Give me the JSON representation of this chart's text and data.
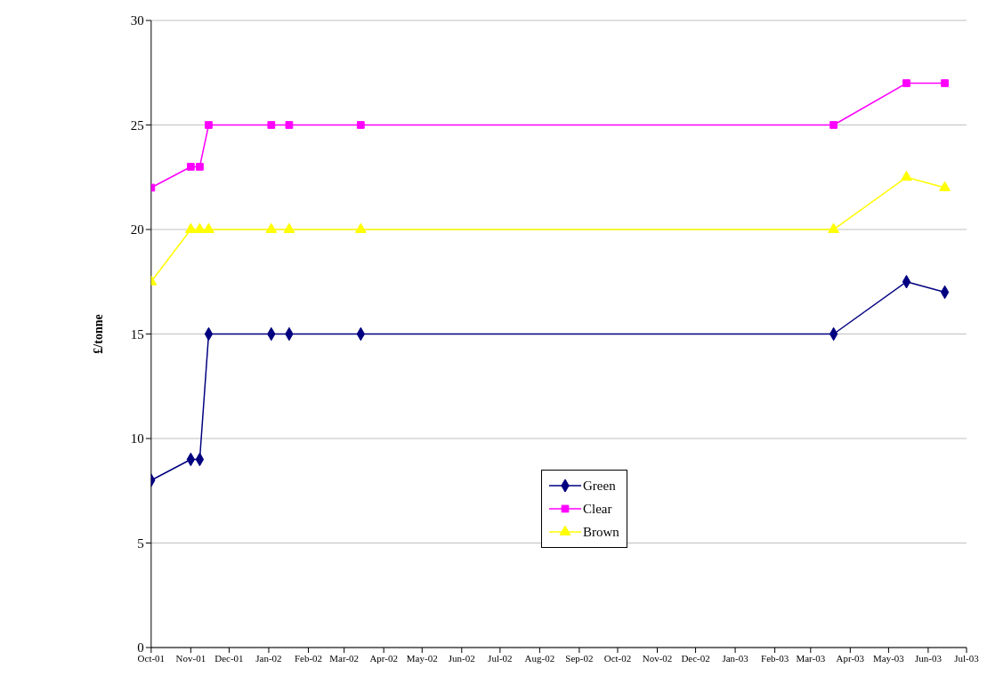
{
  "chart_data": {
    "type": "line",
    "ylabel": "£/tonne",
    "x": [
      "2001-10-01",
      "2001-11-01",
      "2001-11-08",
      "2001-11-15",
      "2002-01-03",
      "2002-01-17",
      "2002-03-14",
      "2003-03-19",
      "2003-05-15",
      "2003-06-14"
    ],
    "series": [
      {
        "name": "Green",
        "color": "#000080",
        "marker": "diamond",
        "values": [
          8,
          9,
          9,
          15,
          15,
          15,
          15,
          15,
          17.5,
          17
        ]
      },
      {
        "name": "Clear",
        "color": "#ff00ff",
        "marker": "square",
        "values": [
          22,
          23,
          23,
          25,
          25,
          25,
          25,
          25,
          27,
          27
        ]
      },
      {
        "name": "Brown",
        "color": "#ffff00",
        "marker": "triangle",
        "values": [
          17.5,
          20,
          20,
          20,
          20,
          20,
          20,
          20,
          22.5,
          22
        ]
      }
    ],
    "xlim": [
      "2001-10-01",
      "2003-07-01"
    ],
    "xticks": [
      {
        "value": "2001-10-01",
        "label": "Oct-01"
      },
      {
        "value": "2001-11-01",
        "label": "Nov-01"
      },
      {
        "value": "2001-12-01",
        "label": "Dec-01"
      },
      {
        "value": "2002-01-01",
        "label": "Jan-02"
      },
      {
        "value": "2002-02-01",
        "label": "Feb-02"
      },
      {
        "value": "2002-03-01",
        "label": "Mar-02"
      },
      {
        "value": "2002-04-01",
        "label": "Apr-02"
      },
      {
        "value": "2002-05-01",
        "label": "May-02"
      },
      {
        "value": "2002-06-01",
        "label": "Jun-02"
      },
      {
        "value": "2002-07-01",
        "label": "Jul-02"
      },
      {
        "value": "2002-08-01",
        "label": "Aug-02"
      },
      {
        "value": "2002-09-01",
        "label": "Sep-02"
      },
      {
        "value": "2002-10-01",
        "label": "Oct-02"
      },
      {
        "value": "2002-11-01",
        "label": "Nov-02"
      },
      {
        "value": "2002-12-01",
        "label": "Dec-02"
      },
      {
        "value": "2003-01-01",
        "label": "Jan-03"
      },
      {
        "value": "2003-02-01",
        "label": "Feb-03"
      },
      {
        "value": "2003-03-01",
        "label": "Mar-03"
      },
      {
        "value": "2003-04-01",
        "label": "Apr-03"
      },
      {
        "value": "2003-05-01",
        "label": "May-03"
      },
      {
        "value": "2003-06-01",
        "label": "Jun-03"
      },
      {
        "value": "2003-07-01",
        "label": "Jul-03"
      }
    ],
    "ylim": [
      0,
      30
    ],
    "yticks": [
      0,
      5,
      10,
      15,
      20,
      25,
      30
    ],
    "grid": "y",
    "legend": "bottom"
  }
}
